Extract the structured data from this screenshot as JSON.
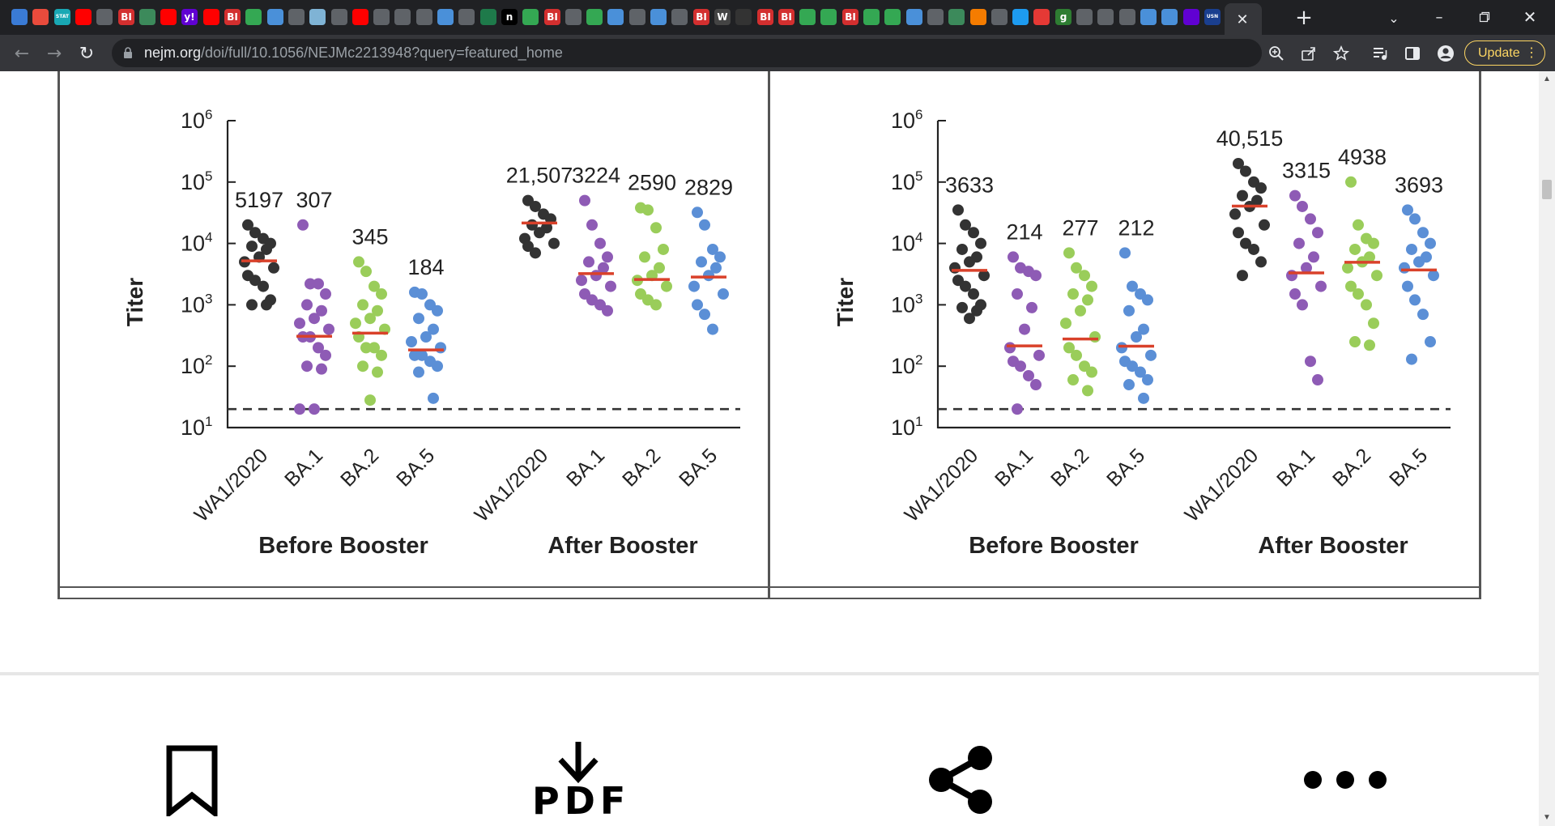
{
  "browser": {
    "tab_favicons": [
      {
        "icon": "globe-icon",
        "text": "",
        "color": "#3a7bd5"
      },
      {
        "icon": "pinwheel-icon",
        "text": "",
        "color": "#e94b3c"
      },
      {
        "icon": "stat-icon",
        "text": "STAT",
        "color": "#19a8b4"
      },
      {
        "icon": "youtube-icon",
        "text": "",
        "color": "#ff0000"
      },
      {
        "icon": "generic-page-icon",
        "text": "",
        "color": "#5f6368"
      },
      {
        "icon": "business-insider-icon",
        "text": "BI",
        "color": "#d32f2f"
      },
      {
        "icon": "globe-icon",
        "text": "",
        "color": "#3c8a5b"
      },
      {
        "icon": "youtube-icon",
        "text": "",
        "color": "#ff0000"
      },
      {
        "icon": "yahoo-icon",
        "text": "y!",
        "color": "#6001d2"
      },
      {
        "icon": "youtube-icon",
        "text": "",
        "color": "#ff0000"
      },
      {
        "icon": "business-insider-icon",
        "text": "BI",
        "color": "#d32f2f"
      },
      {
        "icon": "play-icon",
        "text": "",
        "color": "#34a853"
      },
      {
        "icon": "shield-icon",
        "text": "",
        "color": "#4a90d9"
      },
      {
        "icon": "video-icon",
        "text": "",
        "color": "#5f6368"
      },
      {
        "icon": "image-icon",
        "text": "",
        "color": "#7fb3d5"
      },
      {
        "icon": "generic-page-icon",
        "text": "",
        "color": "#5f6368"
      },
      {
        "icon": "youtube-icon",
        "text": "",
        "color": "#ff0000"
      },
      {
        "icon": "generic-page-icon",
        "text": "",
        "color": "#5f6368"
      },
      {
        "icon": "generic-page-icon",
        "text": "",
        "color": "#5f6368"
      },
      {
        "icon": "video-icon",
        "text": "",
        "color": "#5f6368"
      },
      {
        "icon": "search-icon",
        "text": "",
        "color": "#4a90d9"
      },
      {
        "icon": "generic-page-icon",
        "text": "",
        "color": "#5f6368"
      },
      {
        "icon": "starbucks-icon",
        "text": "",
        "color": "#1e7a4a"
      },
      {
        "icon": "notion-icon",
        "text": "n",
        "color": "#000000"
      },
      {
        "icon": "play-icon",
        "text": "",
        "color": "#34a853"
      },
      {
        "icon": "business-insider-icon",
        "text": "BI",
        "color": "#d32f2f"
      },
      {
        "icon": "generic-page-icon",
        "text": "",
        "color": "#5f6368"
      },
      {
        "icon": "play-icon",
        "text": "",
        "color": "#34a853"
      },
      {
        "icon": "shield-icon",
        "text": "",
        "color": "#4a90d9"
      },
      {
        "icon": "generic-page-icon",
        "text": "",
        "color": "#5f6368"
      },
      {
        "icon": "search-icon",
        "text": "",
        "color": "#4a90d9"
      },
      {
        "icon": "video-icon",
        "text": "",
        "color": "#5f6368"
      },
      {
        "icon": "business-insider-icon",
        "text": "BI",
        "color": "#d32f2f"
      },
      {
        "icon": "wsj-icon",
        "text": "W",
        "color": "#444444"
      },
      {
        "icon": "generic-page-icon",
        "text": "",
        "color": "#333333"
      },
      {
        "icon": "business-insider-icon",
        "text": "BI",
        "color": "#d32f2f"
      },
      {
        "icon": "business-insider-icon",
        "text": "BI",
        "color": "#d32f2f"
      },
      {
        "icon": "play-icon",
        "text": "",
        "color": "#34a853"
      },
      {
        "icon": "play-icon",
        "text": "",
        "color": "#34a853"
      },
      {
        "icon": "business-insider-icon",
        "text": "BI",
        "color": "#d32f2f"
      },
      {
        "icon": "play-icon",
        "text": "",
        "color": "#34a853"
      },
      {
        "icon": "play-icon",
        "text": "",
        "color": "#34a853"
      },
      {
        "icon": "search-icon",
        "text": "",
        "color": "#4a90d9"
      },
      {
        "icon": "generic-page-icon",
        "text": "",
        "color": "#5f6368"
      },
      {
        "icon": "globe-icon",
        "text": "",
        "color": "#3c8a5b"
      },
      {
        "icon": "bookmark-icon",
        "text": "",
        "color": "#f57c00"
      },
      {
        "icon": "video-icon",
        "text": "",
        "color": "#5f6368"
      },
      {
        "icon": "twitter-icon",
        "text": "",
        "color": "#1d9bf0"
      },
      {
        "icon": "podcast-icon",
        "text": "",
        "color": "#e53935"
      },
      {
        "icon": "g-icon",
        "text": "g",
        "color": "#2e7d32"
      },
      {
        "icon": "generic-page-icon",
        "text": "",
        "color": "#5f6368"
      },
      {
        "icon": "generic-page-icon",
        "text": "",
        "color": "#5f6368"
      },
      {
        "icon": "generic-page-icon",
        "text": "",
        "color": "#5f6368"
      },
      {
        "icon": "search-icon",
        "text": "",
        "color": "#4a90d9"
      },
      {
        "icon": "search-icon",
        "text": "",
        "color": "#4a90d9"
      },
      {
        "icon": "yahoo-mail-icon",
        "text": "",
        "color": "#6001d2"
      },
      {
        "icon": "usnews-icon",
        "text": "USN",
        "color": "#1a3f8f"
      }
    ],
    "url_host": "nejm.org",
    "url_path": "/doi/full/10.1056/NEJMc2213948?query=featured_home",
    "update_label": "Update"
  },
  "figure": {
    "y_axis_label": "Titer",
    "tick_labels": [
      "10",
      "10",
      "10",
      "10",
      "10",
      "10"
    ],
    "tick_exponents": [
      "1",
      "2",
      "3",
      "4",
      "5",
      "6"
    ],
    "group_labels": [
      "Before Booster",
      "After Booster"
    ],
    "category_labels": [
      "WA1/2020",
      "BA.1",
      "BA.2",
      "BA.5",
      "WA1/2020",
      "BA.1",
      "BA.2",
      "BA.5"
    ]
  },
  "chart_data": [
    {
      "type": "scatter",
      "ylabel": "Titer",
      "y_scale": "log",
      "ylim": [
        10,
        1000000
      ],
      "limit_of_detection": 20,
      "categories": [
        "WA1/2020",
        "BA.1",
        "BA.2",
        "BA.5",
        "WA1/2020",
        "BA.1",
        "BA.2",
        "BA.5"
      ],
      "groups": [
        "Before Booster",
        "After Booster"
      ],
      "colors": [
        "#333333",
        "#8e5bb5",
        "#9acd5a",
        "#5b8fd6",
        "#333333",
        "#8e5bb5",
        "#9acd5a",
        "#5b8fd6"
      ],
      "median_color": "#d9412a",
      "medians": [
        5197,
        307,
        345,
        184,
        21507,
        3224,
        2590,
        2829
      ],
      "median_labels": [
        "5197",
        "307",
        "345",
        "184",
        "21,507",
        "3224",
        "2590",
        "2829"
      ],
      "points": [
        [
          20000,
          15000,
          12000,
          10000,
          9000,
          8000,
          6000,
          5000,
          4000,
          3000,
          2500,
          2000,
          1200,
          1000,
          1000
        ],
        [
          20000,
          2200,
          2200,
          1500,
          1000,
          800,
          600,
          500,
          400,
          300,
          300,
          200,
          150,
          100,
          90,
          20,
          20
        ],
        [
          5000,
          3500,
          2000,
          1500,
          1000,
          800,
          600,
          500,
          400,
          300,
          200,
          200,
          150,
          100,
          80,
          28
        ],
        [
          1600,
          1500,
          1000,
          800,
          600,
          400,
          300,
          250,
          200,
          150,
          150,
          120,
          100,
          80,
          30
        ],
        [
          50000,
          40000,
          30000,
          25000,
          20000,
          18000,
          15000,
          12000,
          10000,
          9000,
          7000
        ],
        [
          50000,
          20000,
          10000,
          6000,
          5000,
          4000,
          3000,
          2500,
          2000,
          1500,
          1200,
          1000,
          800
        ],
        [
          38000,
          35000,
          18000,
          8000,
          6000,
          4000,
          3000,
          2500,
          2000,
          1500,
          1200,
          1000
        ],
        [
          32000,
          20000,
          8000,
          6000,
          5000,
          4000,
          3000,
          2000,
          1500,
          1000,
          700,
          400
        ]
      ]
    },
    {
      "type": "scatter",
      "ylabel": "Titer",
      "y_scale": "log",
      "ylim": [
        10,
        1000000
      ],
      "limit_of_detection": 20,
      "categories": [
        "WA1/2020",
        "BA.1",
        "BA.2",
        "BA.5",
        "WA1/2020",
        "BA.1",
        "BA.2",
        "BA.5"
      ],
      "groups": [
        "Before Booster",
        "After Booster"
      ],
      "colors": [
        "#333333",
        "#8e5bb5",
        "#9acd5a",
        "#5b8fd6",
        "#333333",
        "#8e5bb5",
        "#9acd5a",
        "#5b8fd6"
      ],
      "median_color": "#d9412a",
      "medians": [
        3633,
        214,
        277,
        212,
        40515,
        3315,
        4938,
        3693
      ],
      "median_labels": [
        "3633",
        "214",
        "277",
        "212",
        "40,515",
        "3315",
        "4938",
        "3693"
      ],
      "points": [
        [
          35000,
          20000,
          15000,
          10000,
          8000,
          6000,
          5000,
          4000,
          3000,
          2500,
          2000,
          1500,
          1000,
          900,
          800,
          600
        ],
        [
          6000,
          4000,
          3500,
          3000,
          1500,
          900,
          400,
          200,
          150,
          120,
          100,
          70,
          50,
          20
        ],
        [
          7000,
          4000,
          3000,
          2000,
          1500,
          1200,
          800,
          500,
          300,
          200,
          150,
          100,
          80,
          60,
          40
        ],
        [
          7000,
          2000,
          1500,
          1200,
          800,
          400,
          300,
          200,
          150,
          120,
          100,
          80,
          60,
          50,
          30
        ],
        [
          200000,
          150000,
          100000,
          80000,
          60000,
          50000,
          40000,
          30000,
          20000,
          15000,
          10000,
          8000,
          5000,
          3000
        ],
        [
          60000,
          40000,
          25000,
          15000,
          10000,
          6000,
          4000,
          3000,
          2000,
          1500,
          1000,
          120,
          60
        ],
        [
          100000,
          20000,
          12000,
          10000,
          8000,
          6000,
          5000,
          4000,
          3000,
          2000,
          1500,
          1000,
          500,
          250,
          220
        ],
        [
          35000,
          25000,
          15000,
          10000,
          8000,
          6000,
          5000,
          4000,
          3000,
          2000,
          1200,
          700,
          250,
          130
        ]
      ]
    }
  ],
  "actions": {
    "save_icon": "bookmark-icon",
    "pdf_label": "PDF",
    "share_icon": "share-icon",
    "more_icon": "more-icon"
  }
}
